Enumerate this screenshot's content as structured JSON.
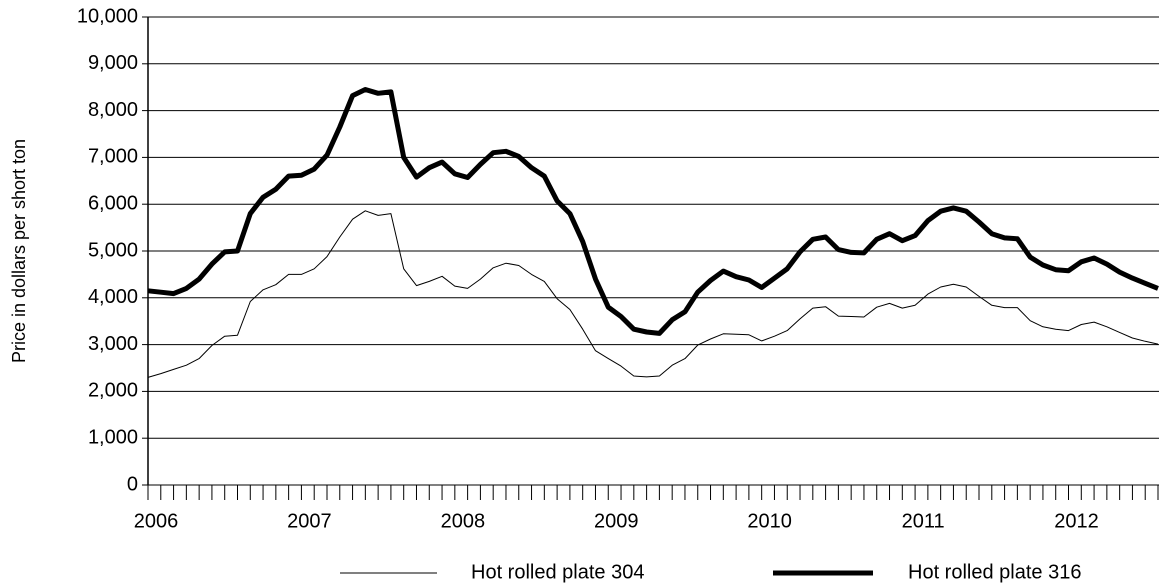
{
  "chart_data": {
    "type": "line",
    "y_label": "Price in dollars per short ton",
    "categories": [
      "2006",
      null,
      null,
      null,
      null,
      null,
      null,
      null,
      null,
      null,
      null,
      null,
      "2007",
      null,
      null,
      null,
      null,
      null,
      null,
      null,
      null,
      null,
      null,
      null,
      "2008",
      null,
      null,
      null,
      null,
      null,
      null,
      null,
      null,
      null,
      null,
      null,
      "2009",
      null,
      null,
      null,
      null,
      null,
      null,
      null,
      null,
      null,
      null,
      null,
      "2010",
      null,
      null,
      null,
      null,
      null,
      null,
      null,
      null,
      null,
      null,
      null,
      "2011",
      null,
      null,
      null,
      null,
      null,
      null,
      null,
      null,
      null,
      null,
      null,
      "2012",
      null,
      null,
      null,
      null,
      null,
      null,
      null
    ],
    "series": [
      {
        "name": "Hot rolled plate 304",
        "color": "#000000",
        "line_width": 1,
        "values": [
          2300,
          2380,
          2470,
          2560,
          2700,
          2980,
          3180,
          3200,
          3920,
          4170,
          4280,
          4500,
          4500,
          4620,
          4880,
          5300,
          5680,
          5860,
          5760,
          5800,
          4620,
          4260,
          4350,
          4460,
          4250,
          4200,
          4400,
          4640,
          4740,
          4690,
          4500,
          4350,
          3980,
          3750,
          3330,
          2870,
          2700,
          2540,
          2330,
          2310,
          2330,
          2560,
          2700,
          2990,
          3120,
          3230,
          3220,
          3210,
          3080,
          3180,
          3300,
          3550,
          3780,
          3810,
          3610,
          3600,
          3590,
          3800,
          3880,
          3780,
          3840,
          4080,
          4230,
          4290,
          4230,
          4030,
          3840,
          3790,
          3790,
          3510,
          3380,
          3330,
          3300,
          3430,
          3480,
          3380,
          3260,
          3140,
          3070,
          3010
        ]
      },
      {
        "name": "Hot rolled plate 316",
        "color": "#000000",
        "line_width": 5,
        "values": [
          4150,
          4120,
          4090,
          4200,
          4400,
          4720,
          4980,
          5000,
          5800,
          6150,
          6320,
          6600,
          6620,
          6750,
          7050,
          7650,
          8320,
          8450,
          8370,
          8400,
          7000,
          6580,
          6780,
          6900,
          6650,
          6570,
          6850,
          7100,
          7130,
          7020,
          6780,
          6600,
          6070,
          5800,
          5200,
          4400,
          3800,
          3600,
          3330,
          3270,
          3240,
          3530,
          3700,
          4120,
          4370,
          4570,
          4450,
          4380,
          4220,
          4420,
          4620,
          4980,
          5250,
          5300,
          5030,
          4970,
          4960,
          5250,
          5370,
          5220,
          5330,
          5650,
          5850,
          5920,
          5850,
          5620,
          5370,
          5280,
          5260,
          4870,
          4700,
          4600,
          4580,
          4770,
          4850,
          4720,
          4550,
          4420,
          4310,
          4200
        ]
      }
    ],
    "ylim": [
      0,
      10000
    ],
    "yticks": [
      0,
      {
        "value": 1000,
        "label": "1,000"
      },
      {
        "value": 2000,
        "label": "2,000"
      },
      {
        "value": 3000,
        "label": "3,000"
      },
      {
        "value": 4000,
        "label": "4,000"
      },
      {
        "value": 5000,
        "label": "5,000"
      },
      {
        "value": 6000,
        "label": "6,000"
      },
      {
        "value": 7000,
        "label": "7,000"
      },
      {
        "value": 8000,
        "label": "8,000"
      },
      {
        "value": 9000,
        "label": "9,000"
      },
      {
        "value": 10000,
        "label": "10,000"
      }
    ],
    "grid": true,
    "legend": "bottom"
  }
}
